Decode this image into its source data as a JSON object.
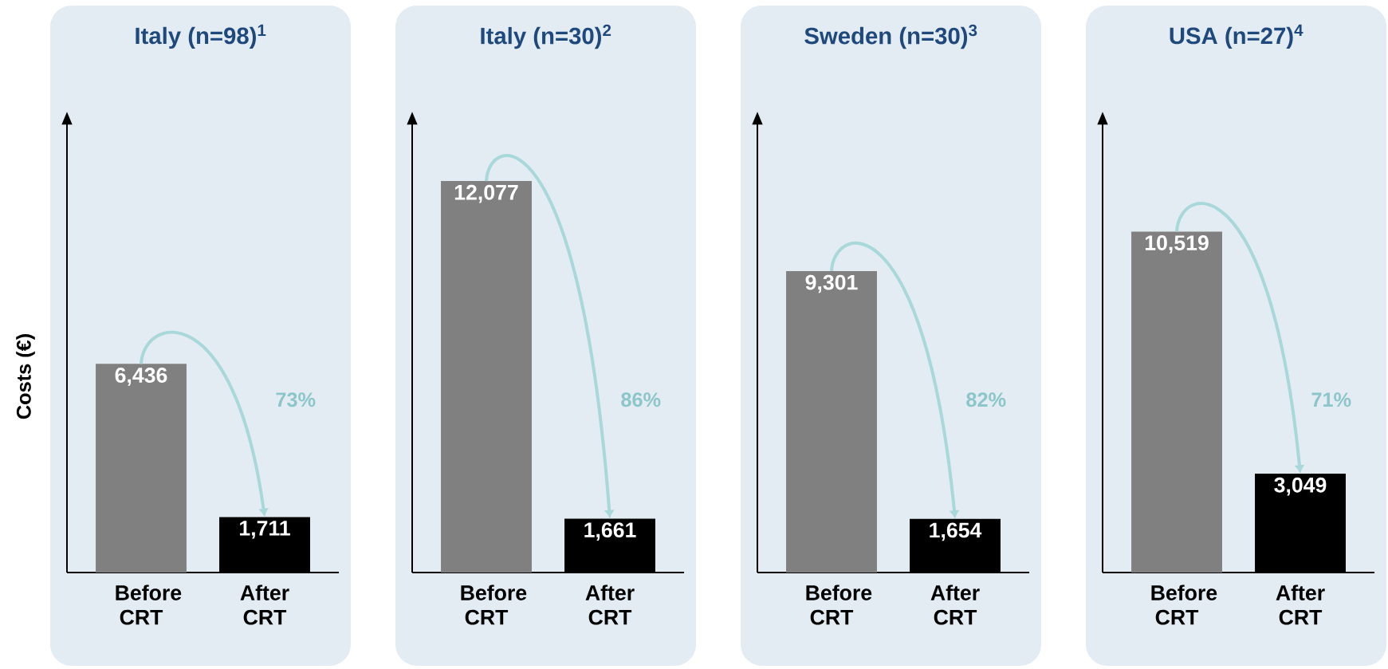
{
  "chart_data": [
    {
      "type": "bar",
      "title": "Italy (n=98)$^{1}$",
      "ylabel": "Costs (€)",
      "categories": [
        "Before CRT",
        "After CRT"
      ],
      "values": [
        6436,
        1711
      ],
      "value_labels": [
        "6,436",
        "1,711"
      ],
      "colors": [
        "#808080",
        "#000000"
      ],
      "tick_labels": "x",
      "annotations": [
        "73%"
      ]
    },
    {
      "type": "bar",
      "title": "Italy (n=30)$^{2}$",
      "categories": [
        "Before CRT",
        "After CRT"
      ],
      "values": [
        12077,
        1661
      ],
      "value_labels": [
        "12,077",
        "1,661"
      ],
      "colors": [
        "#808080",
        "#000000"
      ],
      "tick_labels": "x",
      "annotations": [
        "86%"
      ]
    },
    {
      "type": "bar",
      "title": "Sweden (n=30)$^{3}$",
      "categories": [
        "Before CRT",
        "After CRT"
      ],
      "values": [
        9301,
        1654
      ],
      "value_labels": [
        "9,301",
        "1,654"
      ],
      "colors": [
        "#808080",
        "#000000"
      ],
      "tick_labels": "x",
      "annotations": [
        "82%"
      ]
    },
    {
      "type": "bar",
      "title": "USA (n=27)$^{4}$",
      "categories": [
        "Before CRT",
        "After CRT"
      ],
      "values": [
        10519,
        3049
      ],
      "value_labels": [
        "10,519",
        "3,049"
      ],
      "colors": [
        "#808080",
        "#000000"
      ],
      "tick_labels": "x",
      "annotations": [
        "71%"
      ]
    }
  ]
}
